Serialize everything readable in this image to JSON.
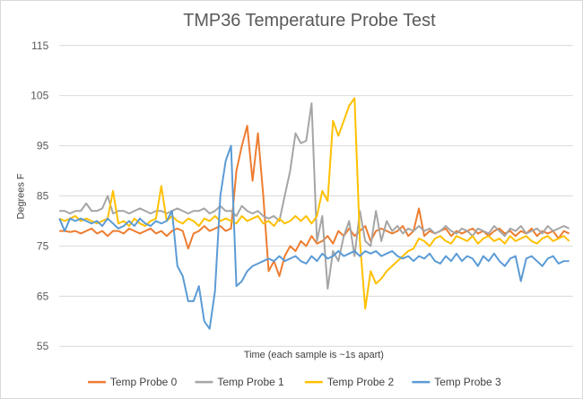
{
  "chart_data": {
    "type": "line",
    "title": "TMP36 Temperature Probe Test",
    "xlabel": "Time (each sample is ~1s apart)",
    "ylabel": "Degrees F",
    "ylim": [
      55,
      115
    ],
    "yticks": [
      "55",
      "65",
      "75",
      "85",
      "95",
      "105",
      "115"
    ],
    "grid": true,
    "legend_position": "bottom",
    "series": [
      {
        "name": "Temp Probe 0",
        "color": "#ED7D31",
        "values": [
          78,
          78,
          77.8,
          78,
          77.5,
          78,
          78.5,
          77.5,
          78,
          77,
          78,
          78,
          77.5,
          78.5,
          78,
          77.5,
          78,
          78.5,
          77.5,
          78,
          77,
          78,
          78.5,
          78,
          74.5,
          77.5,
          78,
          79,
          78,
          78.5,
          79,
          78,
          78.5,
          90,
          95,
          99,
          88,
          97.5,
          85,
          70,
          72,
          69,
          73,
          75,
          74,
          76,
          75,
          77,
          75.5,
          76,
          77,
          75.5,
          78,
          77,
          78.5,
          77,
          78,
          79,
          76,
          78,
          78.5,
          78,
          77.5,
          78,
          79,
          77,
          78,
          82.5,
          77,
          78,
          77.5,
          78,
          78.5,
          77,
          78,
          77.5,
          78,
          78.5,
          77.5,
          78,
          77,
          78,
          78.5,
          77.5,
          78,
          77,
          78,
          77.5,
          78.5,
          77,
          78,
          77.5,
          78,
          76.5,
          78,
          77.5
        ]
      },
      {
        "name": "Temp Probe 1",
        "color": "#A5A5A5",
        "values": [
          82,
          82,
          81.5,
          82,
          82,
          83.5,
          82,
          82,
          82.5,
          85,
          81.5,
          82,
          82,
          81.5,
          82,
          82.5,
          82,
          81.5,
          82,
          82,
          81.5,
          82,
          82.5,
          82,
          81.5,
          82,
          82,
          82.5,
          81.5,
          82,
          83,
          82,
          82,
          81,
          83,
          82,
          81.5,
          82,
          81,
          80.5,
          81,
          80,
          85,
          90,
          97.5,
          95.5,
          96,
          103.5,
          76,
          81,
          66.5,
          74,
          72,
          77,
          80,
          73,
          82,
          76,
          75,
          82,
          76,
          80,
          78,
          79,
          77.5,
          78.5,
          78,
          79,
          78,
          78.5,
          77.5,
          78,
          79,
          78,
          77.5,
          78.5,
          78,
          77,
          78.5,
          78,
          77.5,
          79,
          78,
          77,
          78.5,
          78,
          79,
          77.5,
          78,
          78.5,
          77.5,
          79,
          78,
          78.5,
          79,
          78.5
        ]
      },
      {
        "name": "Temp Probe 2",
        "color": "#FFC000",
        "values": [
          80.5,
          80,
          80.5,
          81,
          80,
          80.5,
          80,
          79.5,
          80,
          80.5,
          86,
          79.5,
          80,
          79,
          80.5,
          79.5,
          79,
          80,
          80.5,
          87,
          80,
          81,
          80,
          79.5,
          80.5,
          80,
          79,
          80.5,
          80,
          81,
          80,
          80.5,
          80,
          79.5,
          81,
          80,
          80.5,
          81,
          79.5,
          80,
          79,
          80.5,
          79.5,
          80,
          81,
          80,
          81,
          79.5,
          81,
          86,
          84,
          100,
          97,
          100,
          103,
          104.5,
          76,
          62.5,
          70,
          67.5,
          68.5,
          70,
          71,
          72,
          73,
          74,
          74.5,
          76.5,
          76,
          75,
          76.5,
          77,
          76,
          75.5,
          77,
          76.5,
          76,
          77,
          75.5,
          76.5,
          77,
          76,
          76.5,
          75.5,
          77,
          76,
          76.5,
          77,
          76,
          75.5,
          76.5,
          77,
          76,
          76.5,
          77,
          76
        ]
      },
      {
        "name": "Temp Probe 3",
        "color": "#5B9BD5",
        "values": [
          80.5,
          78,
          80.5,
          80,
          80.5,
          80,
          79.5,
          80,
          79,
          80.5,
          79.5,
          78.5,
          79,
          80,
          79,
          80.5,
          79.5,
          79,
          80,
          79.5,
          80,
          82,
          71,
          69,
          64,
          64,
          67,
          60,
          58.5,
          66,
          85,
          92,
          95,
          67,
          68,
          70,
          71,
          71.5,
          72,
          72.5,
          72,
          73,
          72,
          72.5,
          73,
          72,
          71.5,
          73,
          72,
          73.5,
          72.5,
          73,
          74,
          73,
          73.5,
          74,
          73,
          74,
          73.5,
          74,
          73,
          73.5,
          74,
          73,
          72.5,
          73,
          72,
          73,
          72.5,
          73.5,
          72,
          71.5,
          73,
          72,
          73.5,
          72,
          73,
          72.5,
          71,
          73,
          72,
          73.5,
          72,
          71,
          72.5,
          73,
          68,
          72.5,
          73,
          72,
          71,
          72.5,
          73,
          71.5,
          72,
          72
        ]
      }
    ]
  }
}
